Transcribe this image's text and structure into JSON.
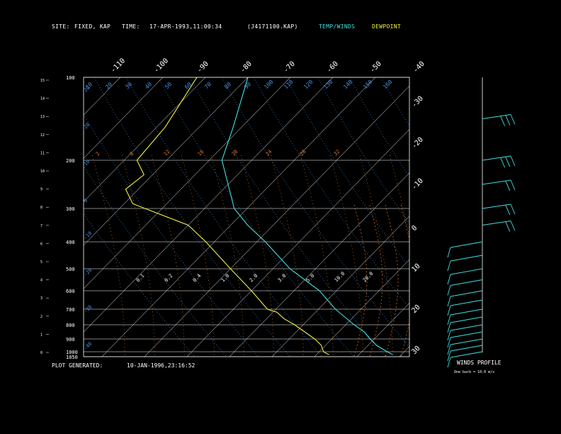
{
  "header": {
    "site_label": "SITE:",
    "site_value": "FIXED, KAP",
    "time_label": "TIME:",
    "time_value": "17-APR-1993,11:00:34",
    "file_id": "(J4171100.KAP)",
    "legend_temp": "TEMP/WINDS",
    "legend_dew": "DEWPOINT"
  },
  "footer": {
    "generated_label": "PLOT GENERATED:",
    "generated_value": "10-JAN-1996,23:16:52",
    "winds_title": "WINDS PROFILE",
    "barb_note": "One barb = 10.0 m/s"
  },
  "colors": {
    "temp": "#40e0e0",
    "dewpoint": "#f0f040",
    "grid": "#ffffff",
    "mixing": "#e07a30",
    "adiabat": "#4a90e0"
  },
  "chart_data": {
    "type": "line",
    "title": "",
    "pressure_levels": [
      100,
      200,
      300,
      400,
      500,
      600,
      700,
      800,
      900,
      1000,
      1050
    ],
    "pressure_labels": [
      "100",
      "200",
      "300",
      "400",
      "500",
      "600",
      "700",
      "800",
      "900",
      "1000",
      "1050"
    ],
    "height_km_ticks": [
      "0",
      "1",
      "2",
      "3",
      "4",
      "5",
      "6",
      "7",
      "8",
      "9",
      "10",
      "11",
      "12",
      "13",
      "14",
      "15"
    ],
    "top_temp_labels": [
      "-110",
      "-100",
      "-90",
      "-80",
      "-70",
      "-60",
      "-50",
      "-40"
    ],
    "right_temp_labels": [
      "-30",
      "-20",
      "-10",
      "0",
      "10",
      "20",
      "30"
    ],
    "theta_labels": [
      "10",
      "20",
      "30",
      "40",
      "50",
      "60",
      "70",
      "80",
      "90",
      "100",
      "110",
      "120",
      "130",
      "140",
      "150",
      "160"
    ],
    "mixing_labels_upper": [
      "2",
      "8",
      "12",
      "16",
      "20",
      "24",
      "28",
      "32"
    ],
    "mixing_labels_lower": [
      "0.1",
      "0.2",
      "0.4",
      "1.0",
      "2.0",
      "3.0",
      "5.0",
      "10.0",
      "20.0"
    ],
    "theta_left_labels": [
      "20",
      "20",
      "10",
      "0",
      "-10",
      "-20",
      "-30",
      "-40"
    ],
    "series": [
      {
        "name": "TEMP/WINDS",
        "points": [
          [
            100,
            -80
          ],
          [
            130,
            -76
          ],
          [
            160,
            -72
          ],
          [
            200,
            -67
          ],
          [
            250,
            -60
          ],
          [
            300,
            -53
          ],
          [
            350,
            -46
          ],
          [
            400,
            -38
          ],
          [
            450,
            -32
          ],
          [
            500,
            -26
          ],
          [
            550,
            -20
          ],
          [
            600,
            -14
          ],
          [
            650,
            -10
          ],
          [
            700,
            -6
          ],
          [
            750,
            -2
          ],
          [
            800,
            2
          ],
          [
            850,
            6
          ],
          [
            900,
            9
          ],
          [
            950,
            12
          ],
          [
            1000,
            16
          ],
          [
            1030,
            18
          ]
        ]
      },
      {
        "name": "DEWPOINT",
        "points": [
          [
            100,
            -92
          ],
          [
            130,
            -90
          ],
          [
            160,
            -88
          ],
          [
            200,
            -87
          ],
          [
            230,
            -82
          ],
          [
            260,
            -83
          ],
          [
            290,
            -78
          ],
          [
            300,
            -74
          ],
          [
            350,
            -60
          ],
          [
            400,
            -52
          ],
          [
            450,
            -46
          ],
          [
            500,
            -40
          ],
          [
            550,
            -35
          ],
          [
            600,
            -30
          ],
          [
            650,
            -26
          ],
          [
            700,
            -22
          ],
          [
            720,
            -19
          ],
          [
            760,
            -16
          ],
          [
            800,
            -12
          ],
          [
            850,
            -8
          ],
          [
            900,
            -4
          ],
          [
            950,
            -1
          ],
          [
            1000,
            1
          ],
          [
            1030,
            3
          ]
        ]
      }
    ],
    "winds": [
      {
        "p": 150,
        "speed": 30,
        "dir": 260
      },
      {
        "p": 200,
        "speed": 25,
        "dir": 250
      },
      {
        "p": 250,
        "speed": 22,
        "dir": 250
      },
      {
        "p": 300,
        "speed": 20,
        "dir": 240
      },
      {
        "p": 350,
        "speed": 15,
        "dir": 230
      },
      {
        "p": 400,
        "speed": 12,
        "dir": 220
      },
      {
        "p": 450,
        "speed": 10,
        "dir": 210
      },
      {
        "p": 500,
        "speed": 10,
        "dir": 200
      },
      {
        "p": 550,
        "speed": 8,
        "dir": 190
      },
      {
        "p": 600,
        "speed": 10,
        "dir": 180
      },
      {
        "p": 650,
        "speed": 8,
        "dir": 170
      },
      {
        "p": 700,
        "speed": 8,
        "dir": 160
      },
      {
        "p": 750,
        "speed": 6,
        "dir": 150
      },
      {
        "p": 800,
        "speed": 8,
        "dir": 140
      },
      {
        "p": 850,
        "speed": 6,
        "dir": 130
      },
      {
        "p": 900,
        "speed": 6,
        "dir": 120
      },
      {
        "p": 950,
        "speed": 5,
        "dir": 110
      },
      {
        "p": 1000,
        "speed": 8,
        "dir": 100
      }
    ]
  }
}
